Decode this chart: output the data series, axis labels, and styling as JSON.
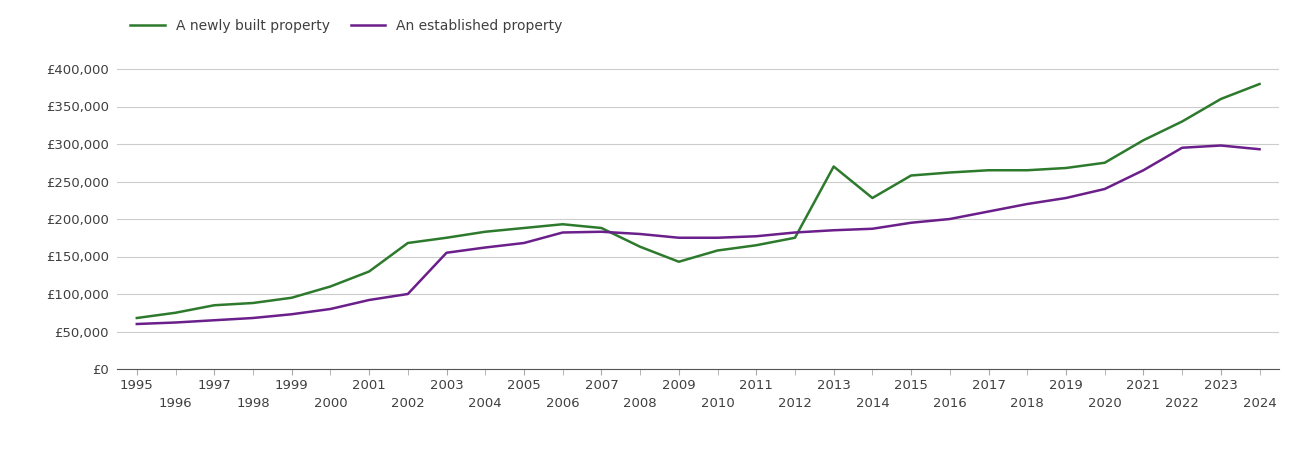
{
  "newly_built": {
    "years": [
      1995,
      1996,
      1997,
      1998,
      1999,
      2000,
      2001,
      2002,
      2003,
      2004,
      2005,
      2006,
      2007,
      2008,
      2009,
      2010,
      2011,
      2012,
      2013,
      2014,
      2015,
      2016,
      2017,
      2018,
      2019,
      2020,
      2021,
      2022,
      2023,
      2024
    ],
    "values": [
      68000,
      75000,
      85000,
      88000,
      95000,
      110000,
      130000,
      168000,
      175000,
      183000,
      188000,
      193000,
      188000,
      163000,
      143000,
      158000,
      165000,
      175000,
      270000,
      228000,
      258000,
      262000,
      265000,
      265000,
      268000,
      275000,
      305000,
      330000,
      360000,
      380000
    ]
  },
  "established": {
    "years": [
      1995,
      1996,
      1997,
      1998,
      1999,
      2000,
      2001,
      2002,
      2003,
      2004,
      2005,
      2006,
      2007,
      2008,
      2009,
      2010,
      2011,
      2012,
      2013,
      2014,
      2015,
      2016,
      2017,
      2018,
      2019,
      2020,
      2021,
      2022,
      2023,
      2024
    ],
    "values": [
      60000,
      62000,
      65000,
      68000,
      73000,
      80000,
      92000,
      100000,
      155000,
      162000,
      168000,
      182000,
      183000,
      180000,
      175000,
      175000,
      177000,
      182000,
      185000,
      187000,
      195000,
      200000,
      210000,
      220000,
      228000,
      240000,
      265000,
      295000,
      298000,
      293000
    ]
  },
  "newly_built_color": "#2d7a2d",
  "established_color": "#6a1f8a",
  "newly_built_label": "A newly built property",
  "established_label": "An established property",
  "yticks": [
    0,
    50000,
    100000,
    150000,
    200000,
    250000,
    300000,
    350000,
    400000
  ],
  "ytick_labels": [
    "£0",
    "£50,000",
    "£100,000",
    "£150,000",
    "£200,000",
    "£250,000",
    "£300,000",
    "£350,000",
    "£400,000"
  ],
  "ylim": [
    0,
    420000
  ],
  "background_color": "#ffffff",
  "grid_color": "#cccccc",
  "line_width": 1.8,
  "legend_fontsize": 10,
  "tick_fontsize": 9.5,
  "text_color": "#404040"
}
